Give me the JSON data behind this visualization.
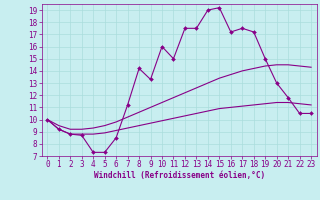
{
  "title": "",
  "xlabel": "Windchill (Refroidissement éolien,°C)",
  "bg_color": "#c8eef0",
  "line_color": "#880088",
  "grid_color": "#aadddd",
  "xlim": [
    -0.5,
    23.5
  ],
  "ylim": [
    7,
    19.5
  ],
  "xticks": [
    0,
    1,
    2,
    3,
    4,
    5,
    6,
    7,
    8,
    9,
    10,
    11,
    12,
    13,
    14,
    15,
    16,
    17,
    18,
    19,
    20,
    21,
    22,
    23
  ],
  "yticks": [
    7,
    8,
    9,
    10,
    11,
    12,
    13,
    14,
    15,
    16,
    17,
    18,
    19
  ],
  "line1_x": [
    0,
    1,
    2,
    3,
    4,
    5,
    6,
    7,
    8,
    9,
    10,
    11,
    12,
    13,
    14,
    15,
    16,
    17,
    18,
    19,
    20,
    21,
    22,
    23
  ],
  "line1_y": [
    10.0,
    9.2,
    8.8,
    8.7,
    7.3,
    7.3,
    8.5,
    11.2,
    14.2,
    13.3,
    16.0,
    15.0,
    17.5,
    17.5,
    19.0,
    19.2,
    17.2,
    17.5,
    17.2,
    15.0,
    13.0,
    11.8,
    10.5,
    10.5
  ],
  "line2_x": [
    0,
    1,
    2,
    3,
    4,
    5,
    6,
    7,
    8,
    9,
    10,
    11,
    12,
    13,
    14,
    15,
    16,
    17,
    18,
    19,
    20,
    21,
    22,
    23
  ],
  "line2_y": [
    10.0,
    9.5,
    9.2,
    9.2,
    9.3,
    9.5,
    9.8,
    10.2,
    10.6,
    11.0,
    11.4,
    11.8,
    12.2,
    12.6,
    13.0,
    13.4,
    13.7,
    14.0,
    14.2,
    14.4,
    14.5,
    14.5,
    14.4,
    14.3
  ],
  "line3_x": [
    0,
    1,
    2,
    3,
    4,
    5,
    6,
    7,
    8,
    9,
    10,
    11,
    12,
    13,
    14,
    15,
    16,
    17,
    18,
    19,
    20,
    21,
    22,
    23
  ],
  "line3_y": [
    10.0,
    9.2,
    8.8,
    8.8,
    8.8,
    8.9,
    9.1,
    9.3,
    9.5,
    9.7,
    9.9,
    10.1,
    10.3,
    10.5,
    10.7,
    10.9,
    11.0,
    11.1,
    11.2,
    11.3,
    11.4,
    11.4,
    11.3,
    11.2
  ],
  "tick_fontsize": 5.5,
  "xlabel_fontsize": 5.5,
  "lw": 0.8,
  "marker_size": 2.0
}
